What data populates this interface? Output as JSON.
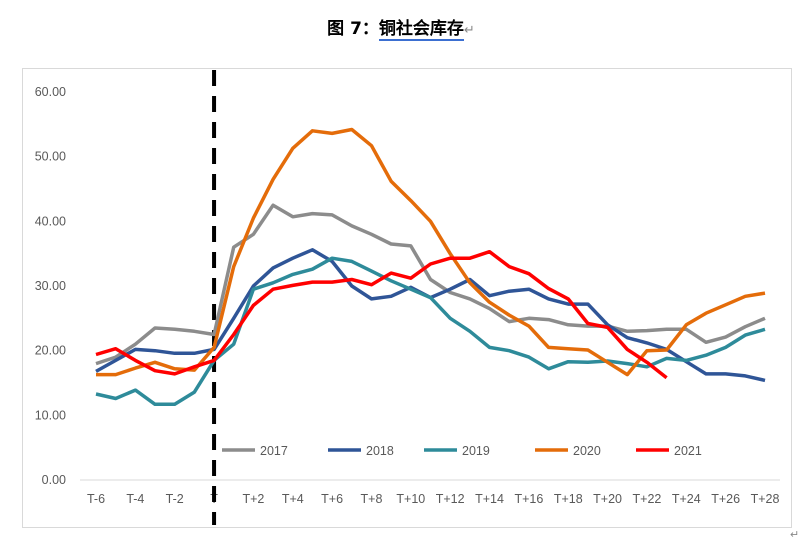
{
  "title": {
    "prefix": "图 7：",
    "main": "铜社会库存",
    "mark": "↵"
  },
  "corner_mark": "↵",
  "chart_data": {
    "type": "line",
    "title": "图 7：铜社会库存",
    "xlabel": "",
    "ylabel": "",
    "ylim": [
      0,
      60
    ],
    "yticks": [
      "0.00",
      "10.00",
      "20.00",
      "30.00",
      "40.00",
      "50.00",
      "60.00"
    ],
    "ytick_values": [
      0,
      10,
      20,
      30,
      40,
      50,
      60
    ],
    "categories": [
      "T-6",
      "T-5",
      "T-4",
      "T-3",
      "T-2",
      "T-1",
      "T",
      "T+1",
      "T+2",
      "T+3",
      "T+4",
      "T+5",
      "T+6",
      "T+7",
      "T+8",
      "T+9",
      "T+10",
      "T+11",
      "T+12",
      "T+13",
      "T+14",
      "T+15",
      "T+16",
      "T+17",
      "T+18",
      "T+19",
      "T+20",
      "T+21",
      "T+22",
      "T+23",
      "T+24",
      "T+25",
      "T+26",
      "T+27",
      "T+28"
    ],
    "xtick_labels": [
      "T-6",
      "T-4",
      "T-2",
      "T",
      "T+2",
      "T+4",
      "T+6",
      "T+8",
      "T+10",
      "T+12",
      "T+14",
      "T+16",
      "T+18",
      "T+20",
      "T+22",
      "T+24",
      "T+26",
      "T+28"
    ],
    "reference_line": {
      "at": "T",
      "style": "dashed",
      "color": "#000000"
    },
    "legend_position": "bottom-inside",
    "series": [
      {
        "name": "2017",
        "color": "#8c8c8c",
        "values": [
          18,
          19,
          21,
          23.5,
          23.3,
          23,
          22.5,
          36,
          38,
          42.5,
          40.7,
          41.2,
          41,
          39.3,
          38,
          36.5,
          36.2,
          31,
          29,
          28,
          26.5,
          24.5,
          25,
          24.8,
          24,
          23.8,
          23.8,
          23,
          23.1,
          23.3,
          23.3,
          21.3,
          22.1,
          23.7,
          25
        ]
      },
      {
        "name": "2018",
        "color": "#2f5597",
        "values": [
          16.8,
          18.5,
          20.2,
          20,
          19.6,
          19.6,
          20.2,
          25,
          30,
          32.8,
          34.3,
          35.6,
          33.8,
          30,
          28,
          28.4,
          29.8,
          28.2,
          29.5,
          31,
          28.5,
          29.2,
          29.5,
          28,
          27.2,
          27.2,
          24,
          22,
          21.2,
          20.2,
          18.3,
          16.4,
          16.4,
          16.1,
          15.4
        ]
      },
      {
        "name": "2019",
        "color": "#2e8b9a",
        "values": [
          13.3,
          12.6,
          13.9,
          11.7,
          11.7,
          13.6,
          18.5,
          21,
          29.5,
          30.5,
          31.8,
          32.6,
          34.3,
          33.8,
          32.3,
          30.8,
          29.5,
          28.2,
          25,
          23,
          20.5,
          20,
          19,
          17.2,
          18.3,
          18.2,
          18.4,
          18,
          17.5,
          18.8,
          18.5,
          19.3,
          20.5,
          22.4,
          23.3
        ]
      },
      {
        "name": "2020",
        "color": "#e46c0a",
        "values": [
          16.3,
          16.3,
          17.3,
          18.2,
          17.2,
          17,
          20.5,
          33,
          40.5,
          46.5,
          51.3,
          54,
          53.6,
          54.2,
          51.7,
          46.2,
          43.2,
          40,
          35,
          30.5,
          27.5,
          25.5,
          23.8,
          20.5,
          20.3,
          20.1,
          18.2,
          16.3,
          20,
          20.1,
          24,
          25.8,
          27.1,
          28.4,
          28.9
        ]
      },
      {
        "name": "2021",
        "color": "#ff0000",
        "values": [
          19.4,
          20.3,
          18.5,
          16.9,
          16.4,
          17.5,
          18.5,
          22.5,
          27,
          29.5,
          30.1,
          30.6,
          30.6,
          31,
          30.2,
          32,
          31.2,
          33.4,
          34.3,
          34.3,
          35.3,
          33,
          31.9,
          29.6,
          28,
          24.2,
          23.6,
          20.2,
          18.2,
          15.8,
          null,
          null,
          null,
          null,
          null
        ]
      }
    ]
  }
}
